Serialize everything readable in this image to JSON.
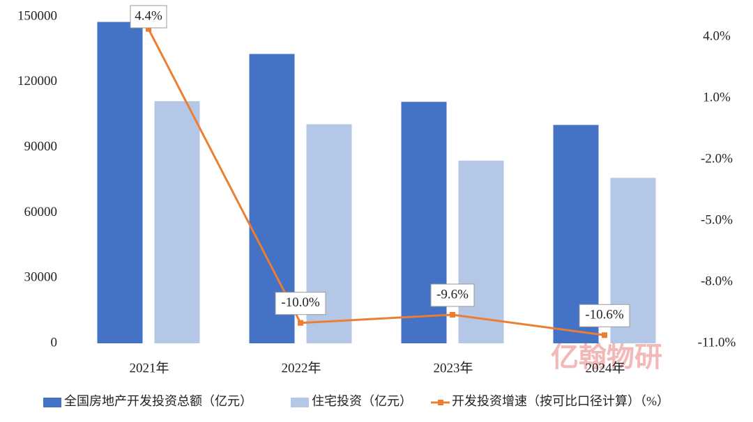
{
  "chart_data": {
    "type": "bar-line",
    "categories": [
      "2021年",
      "2022年",
      "2023年",
      "2024年"
    ],
    "series": [
      {
        "name": "全国房地产开发投资总额（亿元）",
        "type": "bar",
        "color": "#4472c4",
        "values": [
          147600,
          132900,
          110900,
          100300
        ]
      },
      {
        "name": "住宅投资（亿元）",
        "type": "bar",
        "color": "#b4c7e7",
        "values": [
          111200,
          100600,
          83900,
          76000
        ]
      },
      {
        "name": "开发投资增速（按可比口径计算）（%）",
        "type": "line",
        "axis": "y2",
        "color": "#ed7d31",
        "values": [
          4.4,
          -10.0,
          -9.6,
          -10.6
        ],
        "value_labels": [
          "4.4%",
          "-10.0%",
          "-9.6%",
          "-10.6%"
        ]
      }
    ],
    "ylim": [
      0,
      150000
    ],
    "yticks": [
      0,
      30000,
      60000,
      90000,
      120000,
      150000
    ],
    "y2lim": [
      -11,
      5
    ],
    "y2ticks": [
      {
        "value": -11,
        "label": "-11.0%"
      },
      {
        "value": -8,
        "label": "-8.0%"
      },
      {
        "value": -5,
        "label": "-5.0%"
      },
      {
        "value": -2,
        "label": "-2.0%"
      },
      {
        "value": 1,
        "label": "1.0%"
      },
      {
        "value": 4,
        "label": "4.0%"
      }
    ],
    "grid": false,
    "legend": "bottom",
    "watermark": "亿翰物研"
  }
}
